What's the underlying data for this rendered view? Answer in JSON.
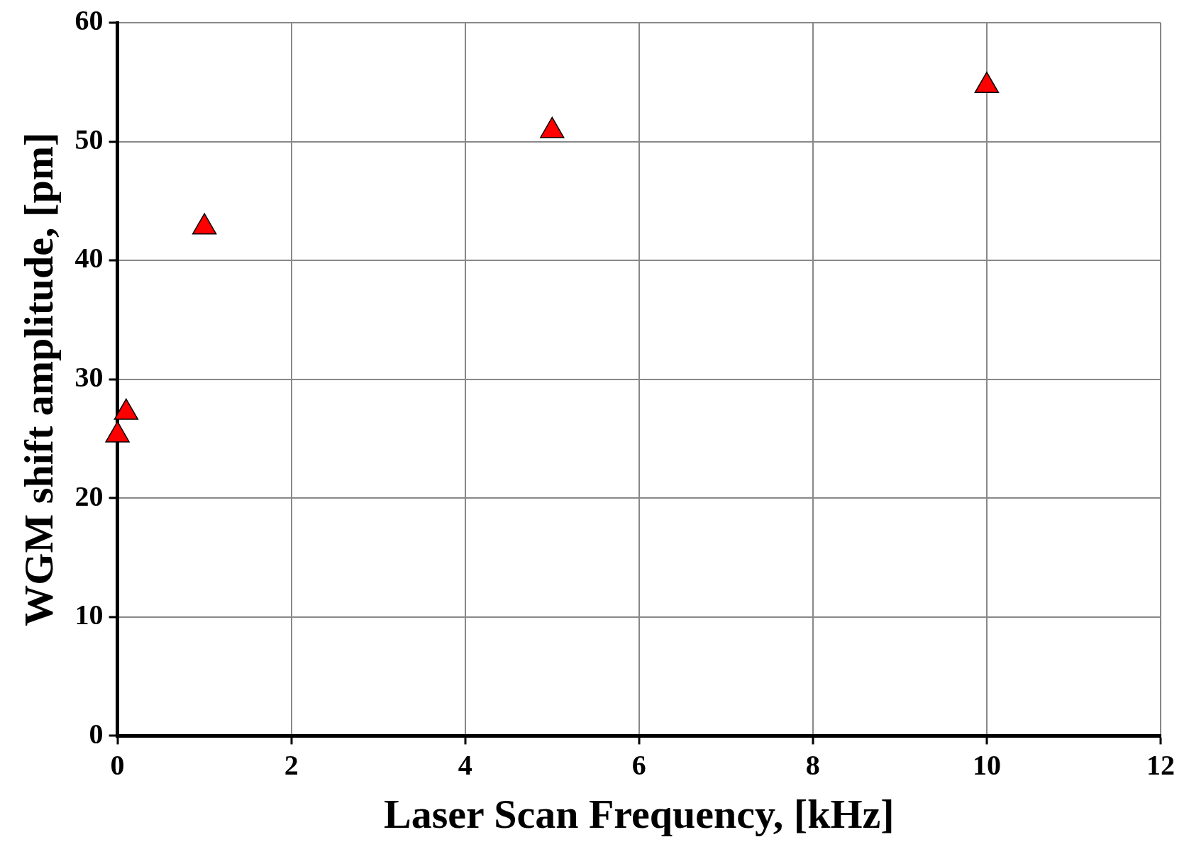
{
  "chart_data": {
    "type": "scatter",
    "xlabel": "Laser Scan Frequency, [kHz]",
    "ylabel": "WGM shift amplitude, [pm]",
    "x": [
      0,
      0.1,
      1,
      5,
      10
    ],
    "series": [
      {
        "color": "#ff0000",
        "values": [
          25.3,
          27.2,
          42.8,
          50.9,
          54.7
        ]
      }
    ],
    "xlim": [
      0,
      12
    ],
    "xticks": [
      0,
      2,
      4,
      6,
      8,
      10,
      12
    ],
    "ylim": [
      0,
      60
    ],
    "yticks": [
      0,
      10,
      20,
      30,
      40,
      50,
      60
    ],
    "grid": true,
    "legend": false,
    "marker": "triangle"
  }
}
